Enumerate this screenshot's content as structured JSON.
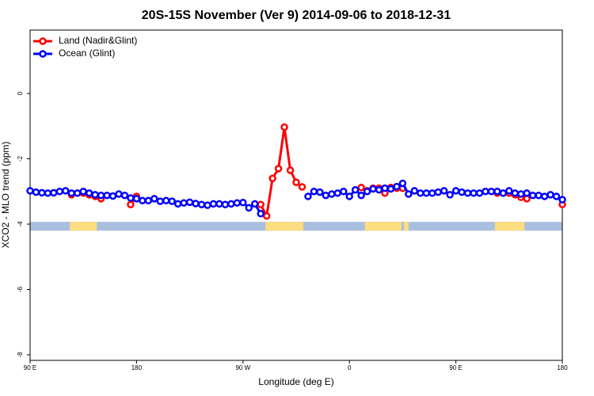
{
  "chart_data": {
    "type": "line",
    "title": "20S-15S November (Ver 9)   2014-09-06 to 2018-12-31",
    "x_label": "Longitude (deg E)",
    "y_label": "XCO2 - MLO trend (ppm)",
    "x": [
      90,
      95,
      100,
      105,
      110,
      115,
      120,
      125,
      130,
      135,
      140,
      145,
      150,
      155,
      160,
      165,
      170,
      175,
      180,
      185,
      190,
      195,
      200,
      205,
      210,
      215,
      220,
      225,
      230,
      235,
      240,
      245,
      250,
      255,
      260,
      265,
      270,
      275,
      280,
      285,
      290,
      295,
      300,
      305,
      310,
      315,
      320,
      325,
      330,
      335,
      340,
      345,
      350,
      355,
      360,
      365,
      370,
      375,
      380,
      385,
      390,
      395,
      400,
      405,
      410,
      415,
      420,
      425,
      430,
      435,
      440,
      445,
      450,
      455,
      460,
      465,
      470,
      475,
      480,
      485,
      490,
      495,
      500,
      505,
      510,
      515,
      520,
      525,
      530,
      535,
      540
    ],
    "series": [
      {
        "name": "Land (Nadir&Glint)",
        "color": "#ff0000",
        "values": [
          null,
          null,
          null,
          null,
          null,
          null,
          null,
          -3.1,
          -3.05,
          -3.05,
          -3.1,
          -3.15,
          -3.22,
          null,
          null,
          null,
          null,
          -3.4,
          -3.15,
          null,
          null,
          null,
          null,
          null,
          null,
          null,
          null,
          null,
          null,
          null,
          null,
          null,
          null,
          null,
          null,
          null,
          null,
          null,
          null,
          -3.4,
          -3.75,
          -2.6,
          -2.3,
          -1.03,
          -2.35,
          -2.72,
          -2.86,
          null,
          null,
          null,
          null,
          null,
          null,
          null,
          null,
          null,
          -2.88,
          -2.98,
          -2.9,
          -2.9,
          -3.05,
          -2.88,
          -2.9,
          -2.9,
          null,
          null,
          null,
          null,
          null,
          null,
          null,
          null,
          null,
          null,
          null,
          null,
          null,
          null,
          null,
          -3.05,
          -3.05,
          -3.05,
          -3.1,
          -3.18,
          -3.22,
          null,
          null,
          null,
          null,
          null,
          -3.4
        ]
      },
      {
        "name": "Ocean (Glint)",
        "color": "#0000ff",
        "values": [
          -2.98,
          -3.02,
          -3.04,
          -3.05,
          -3.04,
          -3.0,
          -2.98,
          -3.05,
          -3.05,
          -3.0,
          -3.05,
          -3.1,
          -3.12,
          -3.12,
          -3.14,
          -3.08,
          -3.12,
          -3.2,
          -3.22,
          -3.28,
          -3.28,
          -3.22,
          -3.3,
          -3.28,
          -3.3,
          -3.38,
          -3.35,
          -3.33,
          -3.37,
          -3.4,
          -3.42,
          -3.38,
          -3.38,
          -3.4,
          -3.38,
          -3.35,
          -3.34,
          -3.5,
          -3.38,
          -3.68,
          null,
          null,
          null,
          null,
          null,
          null,
          null,
          -3.15,
          -3.0,
          -3.02,
          -3.12,
          -3.08,
          -3.05,
          -3.0,
          -3.15,
          -2.95,
          -3.12,
          -3.0,
          -2.92,
          -2.95,
          -2.9,
          -2.92,
          -2.85,
          -2.75,
          -3.08,
          -2.98,
          -3.05,
          -3.05,
          -3.05,
          -3.02,
          -2.98,
          -3.1,
          -2.98,
          -3.02,
          -3.05,
          -3.05,
          -3.05,
          -3.0,
          -3.0,
          -3.0,
          -3.05,
          -2.98,
          -3.05,
          -3.08,
          -3.05,
          -3.12,
          -3.12,
          -3.15,
          -3.1,
          -3.15,
          -3.25
        ]
      }
    ],
    "xlim": [
      90,
      540
    ],
    "xticks": [
      {
        "value": 90,
        "label": "90 E"
      },
      180,
      {
        "value": 270,
        "label": "90 W"
      },
      {
        "value": 360,
        "label": "0"
      },
      {
        "value": 450,
        "label": "90 E"
      },
      {
        "value": 540,
        "label": "180"
      }
    ],
    "ylim": [
      -8.17,
      1.94
    ],
    "yticks": [
      -8,
      -6,
      -4,
      -2,
      0
    ],
    "legend": "top-left",
    "surface_strip": {
      "range": [
        -3.93,
        -4.2
      ],
      "color": "#a9bfdf",
      "land_color": "#fddd80",
      "land_spans": [
        [
          123.6,
          146.4
        ],
        [
          289,
          321
        ],
        [
          373,
          404
        ],
        [
          406,
          410
        ],
        [
          483,
          508
        ]
      ]
    }
  }
}
